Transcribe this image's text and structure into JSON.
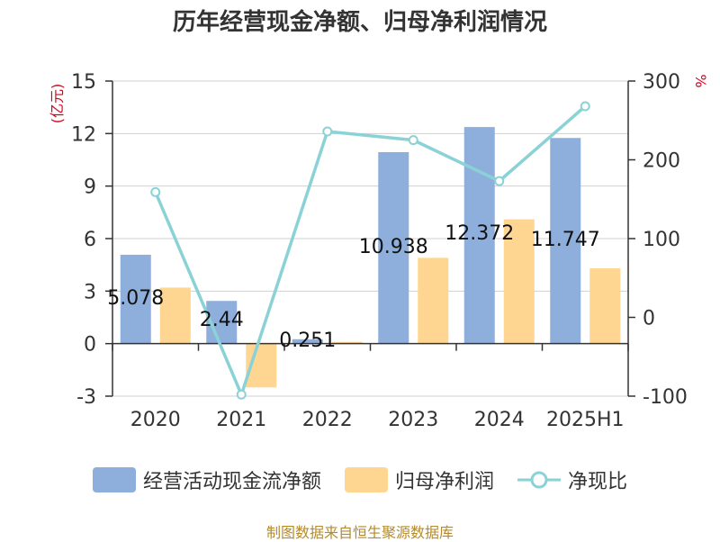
{
  "title": "历年经营现金净额、归母净利润情况",
  "source": "制图数据来自恒生聚源数据库",
  "colors": {
    "cash": "#8eaedc",
    "profit": "#fed591",
    "ratio": "#8ad2d6",
    "axis_label_red": "#d9001b",
    "text": "#333333"
  },
  "chart_data": {
    "type": "bar",
    "categories": [
      "2020",
      "2021",
      "2022",
      "2023",
      "2024",
      "2025H1"
    ],
    "series": [
      {
        "name": "经营活动现金流净额",
        "type": "bar",
        "axis": "left",
        "values": [
          5.078,
          2.44,
          0.251,
          10.938,
          12.372,
          11.747
        ],
        "labels": [
          "5.078",
          "2.44",
          "0.251",
          "10.938",
          "12.372",
          "11.747"
        ]
      },
      {
        "name": "归母净利润",
        "type": "bar",
        "axis": "left",
        "values": [
          3.2,
          -2.5,
          0.1,
          4.9,
          7.1,
          4.3
        ]
      },
      {
        "name": "净现比",
        "type": "line",
        "axis": "right",
        "values": [
          159,
          -98,
          236,
          225,
          173,
          268
        ]
      }
    ],
    "y_left": {
      "label": "(亿元)",
      "ylim": [
        -3,
        15
      ],
      "ticks": [
        -3,
        0,
        3,
        6,
        9,
        12,
        15
      ]
    },
    "y_right": {
      "label": "%",
      "ylim": [
        -100,
        300
      ],
      "ticks": [
        -100,
        0,
        100,
        200,
        300
      ]
    },
    "grid": true,
    "legend_position": "bottom"
  }
}
